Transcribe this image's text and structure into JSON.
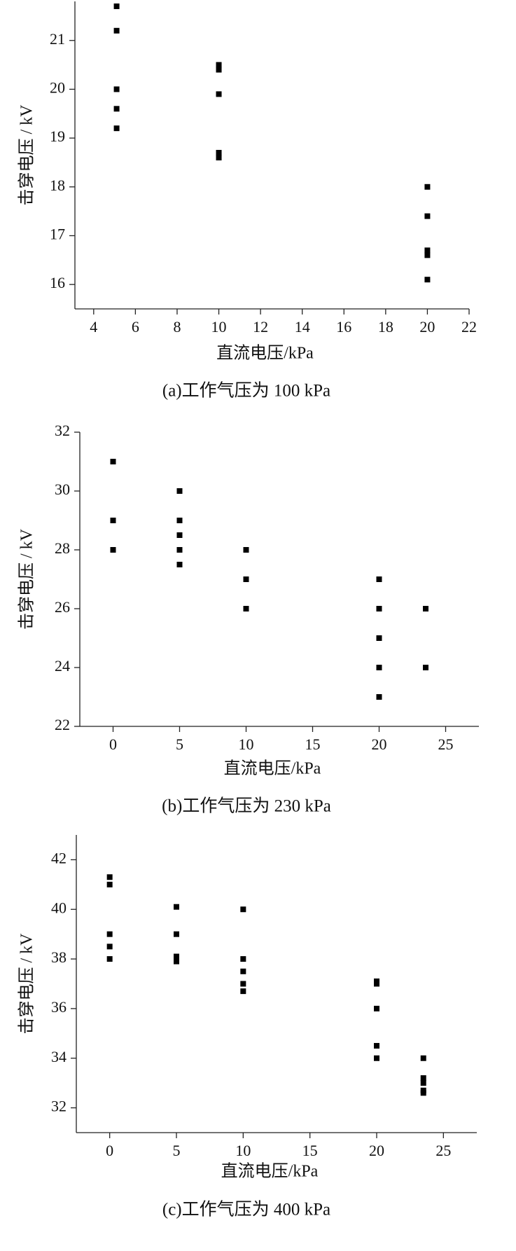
{
  "chart_data": [
    {
      "type": "scatter",
      "caption": "(a)工作气压为 100 kPa",
      "xlabel": "直流电压/kPa",
      "ylabel": "击穿电压 / kV",
      "color": "#000000",
      "x": [
        5.1,
        5.1,
        5.1,
        5.1,
        5.1,
        10,
        10,
        10,
        10,
        10,
        20,
        20,
        20,
        20,
        20
      ],
      "values": [
        21.7,
        21.2,
        20.0,
        19.6,
        19.2,
        20.5,
        20.4,
        19.9,
        18.7,
        18.6,
        18.0,
        17.4,
        16.7,
        16.6,
        16.1
      ],
      "xlim": [
        3.1,
        22
      ],
      "xticks": [
        4,
        6,
        8,
        10,
        12,
        14,
        16,
        18,
        20,
        22
      ],
      "ylim": [
        15.5,
        21.8
      ],
      "yticks": [
        16,
        17,
        18,
        19,
        20,
        21
      ]
    },
    {
      "type": "scatter",
      "caption": "(b)工作气压为 230 kPa",
      "xlabel": "直流电压/kPa",
      "ylabel": "击穿电压 / kV",
      "color": "#000000",
      "x": [
        0,
        0,
        0,
        5,
        5,
        5,
        5,
        5,
        10,
        10,
        10,
        20,
        20,
        20,
        20,
        20,
        23.5,
        23.5
      ],
      "values": [
        31,
        29,
        28,
        30,
        29,
        28.5,
        28,
        27.5,
        28,
        27,
        26,
        27,
        26,
        25,
        24,
        23,
        26,
        24
      ],
      "xlim": [
        -2.5,
        27.5
      ],
      "xticks": [
        0,
        5,
        10,
        15,
        20,
        25
      ],
      "ylim": [
        22,
        32
      ],
      "yticks": [
        22,
        24,
        26,
        28,
        30,
        32
      ]
    },
    {
      "type": "scatter",
      "caption": "(c)工作气压为 400 kPa",
      "xlabel": "直流电压/kPa",
      "ylabel": "击穿电压 / kV",
      "color": "#000000",
      "x": [
        0,
        0,
        0,
        0,
        0,
        5,
        5,
        5,
        5,
        10,
        10,
        10,
        10,
        10,
        20,
        20,
        20,
        20,
        20,
        23.5,
        23.5,
        23.5,
        23.5,
        23.5
      ],
      "values": [
        41.3,
        41.0,
        39.0,
        38.5,
        38.0,
        40.1,
        39.0,
        38.1,
        37.9,
        40.0,
        38.0,
        37.5,
        37.0,
        36.7,
        37.1,
        37.0,
        36.0,
        34.5,
        34.0,
        34.0,
        33.2,
        33.0,
        32.7,
        32.6
      ],
      "xlim": [
        -2.5,
        27.5
      ],
      "xticks": [
        0,
        5,
        10,
        15,
        20,
        25
      ],
      "ylim": [
        31,
        43
      ],
      "yticks": [
        32,
        34,
        36,
        38,
        40,
        42
      ]
    }
  ]
}
